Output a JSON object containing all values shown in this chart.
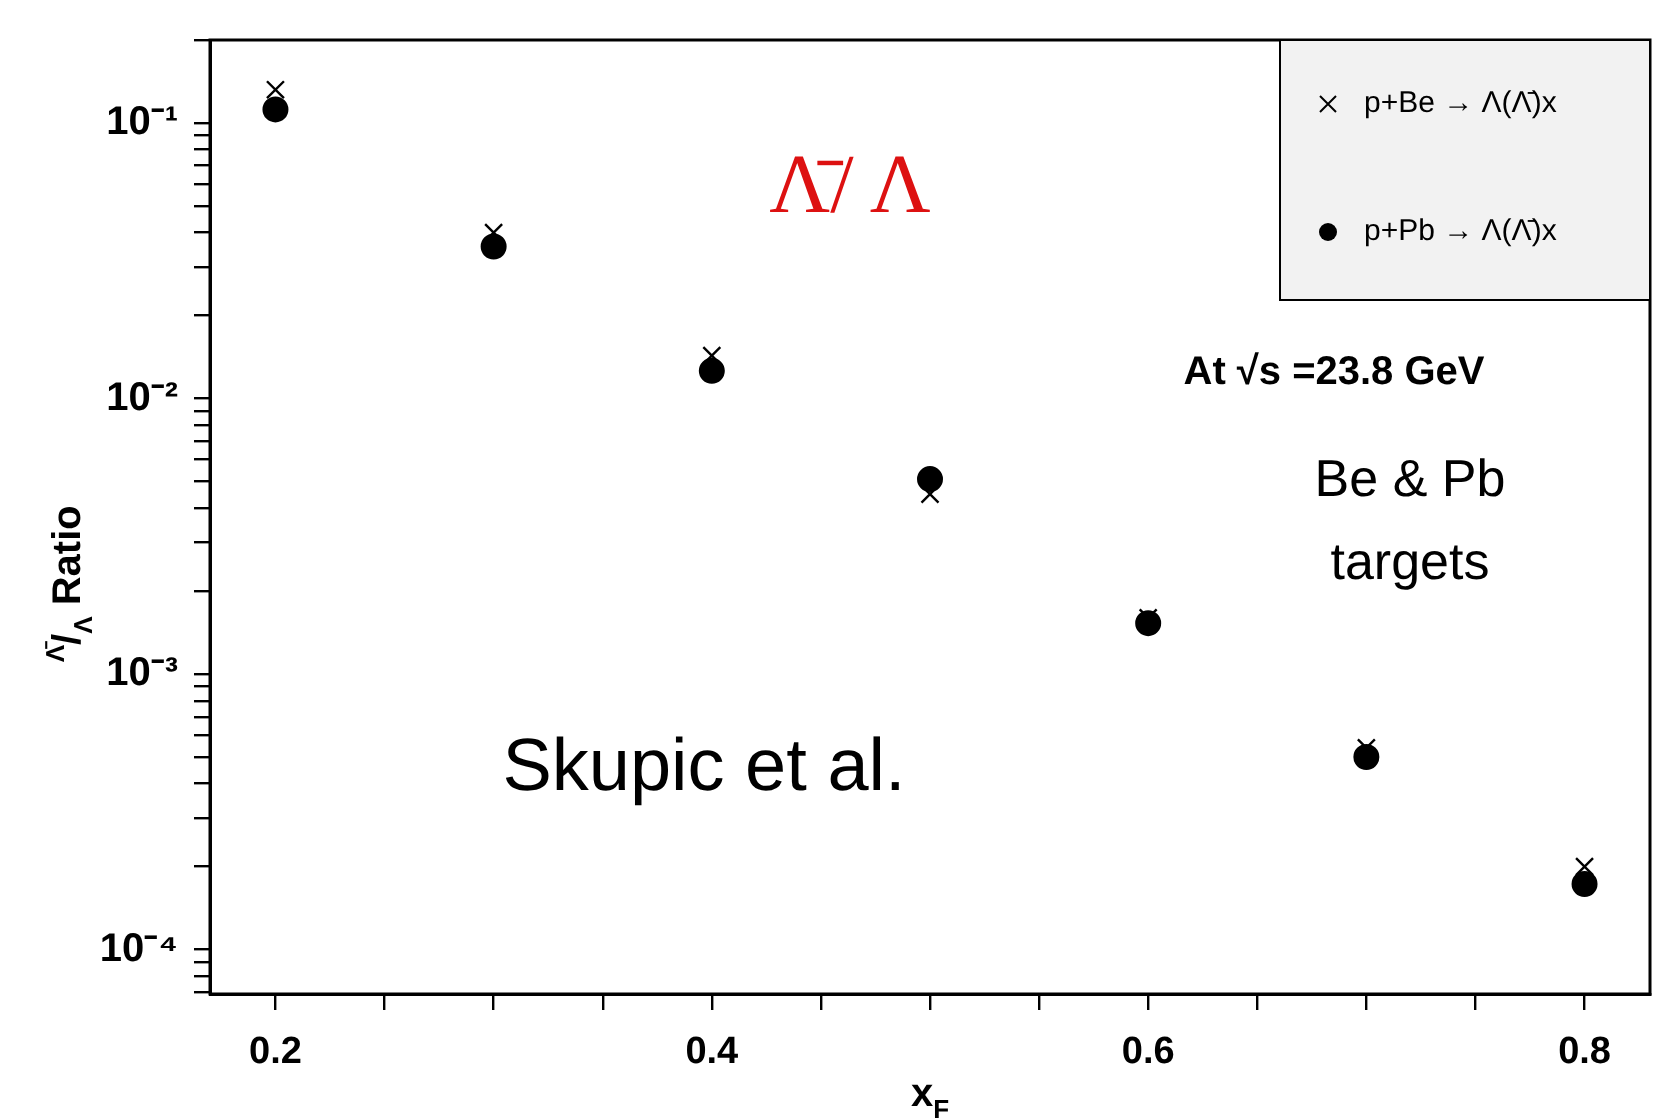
{
  "chart_data": {
    "type": "scatter",
    "xlabel": "x$_{F}$",
    "ylabel": "$^{Λ̄}$/$_{Λ}$ Ratio",
    "x": [
      0.2,
      0.3,
      0.4,
      0.5,
      0.6,
      0.7,
      0.8
    ],
    "series": [
      {
        "name": "p+Be → Λ(Λ̄)x",
        "color": "#000000",
        "marker": "cross",
        "values": [
          0.132,
          0.04,
          0.0143,
          0.0045,
          0.0016,
          0.00054,
          0.0002
        ]
      },
      {
        "name": "p+Pb → Λ(Λ̄)x",
        "color": "#000000",
        "marker": "circle",
        "values": [
          0.112,
          0.0356,
          0.0126,
          0.0051,
          0.00153,
          0.0005,
          0.000173
        ]
      }
    ],
    "log": "y",
    "xlim": [
      0.17,
      0.83
    ],
    "ylim": [
      6.9e-05,
      0.2
    ],
    "xticks": [
      0.2,
      {
        "value": 0.25,
        "label": null
      },
      {
        "value": 0.3,
        "label": null
      },
      {
        "value": 0.35,
        "label": null
      },
      0.4,
      {
        "value": 0.45,
        "label": null
      },
      {
        "value": 0.5,
        "label": null
      },
      {
        "value": 0.55,
        "label": null
      },
      0.6,
      {
        "value": 0.65,
        "label": null
      },
      {
        "value": 0.7,
        "label": null
      },
      {
        "value": 0.75,
        "label": null
      },
      0.8
    ],
    "yticks": [
      {
        "value": 7e-05,
        "label": null
      },
      {
        "value": 8e-05,
        "label": null
      },
      {
        "value": 9e-05,
        "label": null
      },
      {
        "value": 0.0001,
        "label": "10⁻⁴"
      },
      {
        "value": 0.0002,
        "label": null
      },
      {
        "value": 0.0003,
        "label": null
      },
      {
        "value": 0.0004,
        "label": null
      },
      {
        "value": 0.0005,
        "label": null
      },
      {
        "value": 0.0006,
        "label": null
      },
      {
        "value": 0.0007,
        "label": null
      },
      {
        "value": 0.0008,
        "label": null
      },
      {
        "value": 0.0009,
        "label": null
      },
      {
        "value": 0.001,
        "label": "10⁻³"
      },
      {
        "value": 0.002,
        "label": null
      },
      {
        "value": 0.003,
        "label": null
      },
      {
        "value": 0.004,
        "label": null
      },
      {
        "value": 0.005,
        "label": null
      },
      {
        "value": 0.006,
        "label": null
      },
      {
        "value": 0.007,
        "label": null
      },
      {
        "value": 0.008,
        "label": null
      },
      {
        "value": 0.009,
        "label": null
      },
      {
        "value": 0.01,
        "label": "10⁻²"
      },
      {
        "value": 0.02,
        "label": null
      },
      {
        "value": 0.03,
        "label": null
      },
      {
        "value": 0.04,
        "label": null
      },
      {
        "value": 0.05,
        "label": null
      },
      {
        "value": 0.06,
        "label": null
      },
      {
        "value": 0.07,
        "label": null
      },
      {
        "value": 0.08,
        "label": null
      },
      {
        "value": 0.09,
        "label": null
      },
      {
        "value": 0.1,
        "label": "10⁻¹"
      },
      {
        "value": 0.2,
        "label": null
      }
    ],
    "grid": false,
    "legend": "top right",
    "annotations": [
      "Λ̄/ Λ",
      "At √s =23.8 GeV",
      "Be & Pb targets",
      "Skupic et al."
    ]
  }
}
